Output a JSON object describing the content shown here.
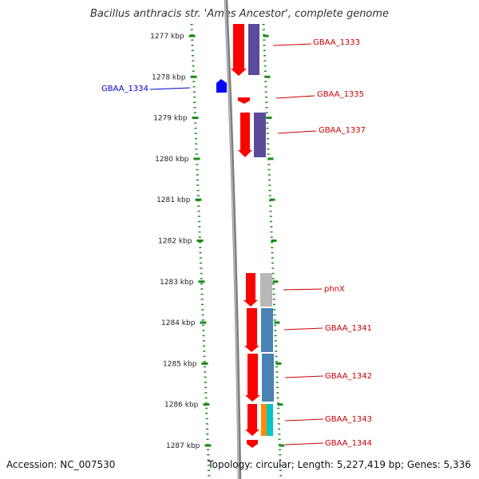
{
  "title": "Bacillus anthracis str. 'Ames Ancestor', complete genome",
  "accession": "Accession: NC_007530",
  "summary": "Topology: circular; Length: 5,227,419 bp; Genes: 5,336",
  "scale": {
    "unit": "kbp",
    "ticks": [
      1277,
      1278,
      1279,
      1280,
      1281,
      1282,
      1283,
      1284,
      1285,
      1286,
      1287
    ]
  },
  "colors": {
    "cds": "#ff0000",
    "purple": "#5a4b9a",
    "steel": "#4a82b4",
    "gray": "#b8b8b8",
    "orange": "#ff8c00",
    "cyan": "#00c8c8",
    "blue": "#0000ff",
    "guide": "#1a8c1a",
    "backbone": "#808080",
    "label_red": "#cc0000",
    "label_blue": "#0000cc"
  },
  "genes": [
    {
      "label": "GBAA_1333",
      "start_kbp": 1276.6,
      "end_kbp": 1277.9,
      "color": "#cc0000"
    },
    {
      "label": "GBAA_1334",
      "start_kbp": 1278.05,
      "end_kbp": 1278.4,
      "color": "#0000cc"
    },
    {
      "label": "GBAA_1335",
      "start_kbp": 1278.5,
      "end_kbp": 1278.65,
      "color": "#cc0000"
    },
    {
      "label": "GBAA_1337",
      "start_kbp": 1278.9,
      "end_kbp": 1279.9,
      "color": "#cc0000"
    },
    {
      "label": "phnX",
      "start_kbp": 1282.8,
      "end_kbp": 1283.6,
      "color": "#cc0000"
    },
    {
      "label": "GBAA_1341",
      "start_kbp": 1283.65,
      "end_kbp": 1284.7,
      "color": "#cc0000"
    },
    {
      "label": "GBAA_1342",
      "start_kbp": 1284.75,
      "end_kbp": 1285.95,
      "color": "#cc0000"
    },
    {
      "label": "GBAA_1343",
      "start_kbp": 1285.95,
      "end_kbp": 1286.75,
      "color": "#cc0000"
    },
    {
      "label": "GBAA_1344",
      "start_kbp": 1286.85,
      "end_kbp": 1287.0,
      "color": "#cc0000"
    }
  ]
}
